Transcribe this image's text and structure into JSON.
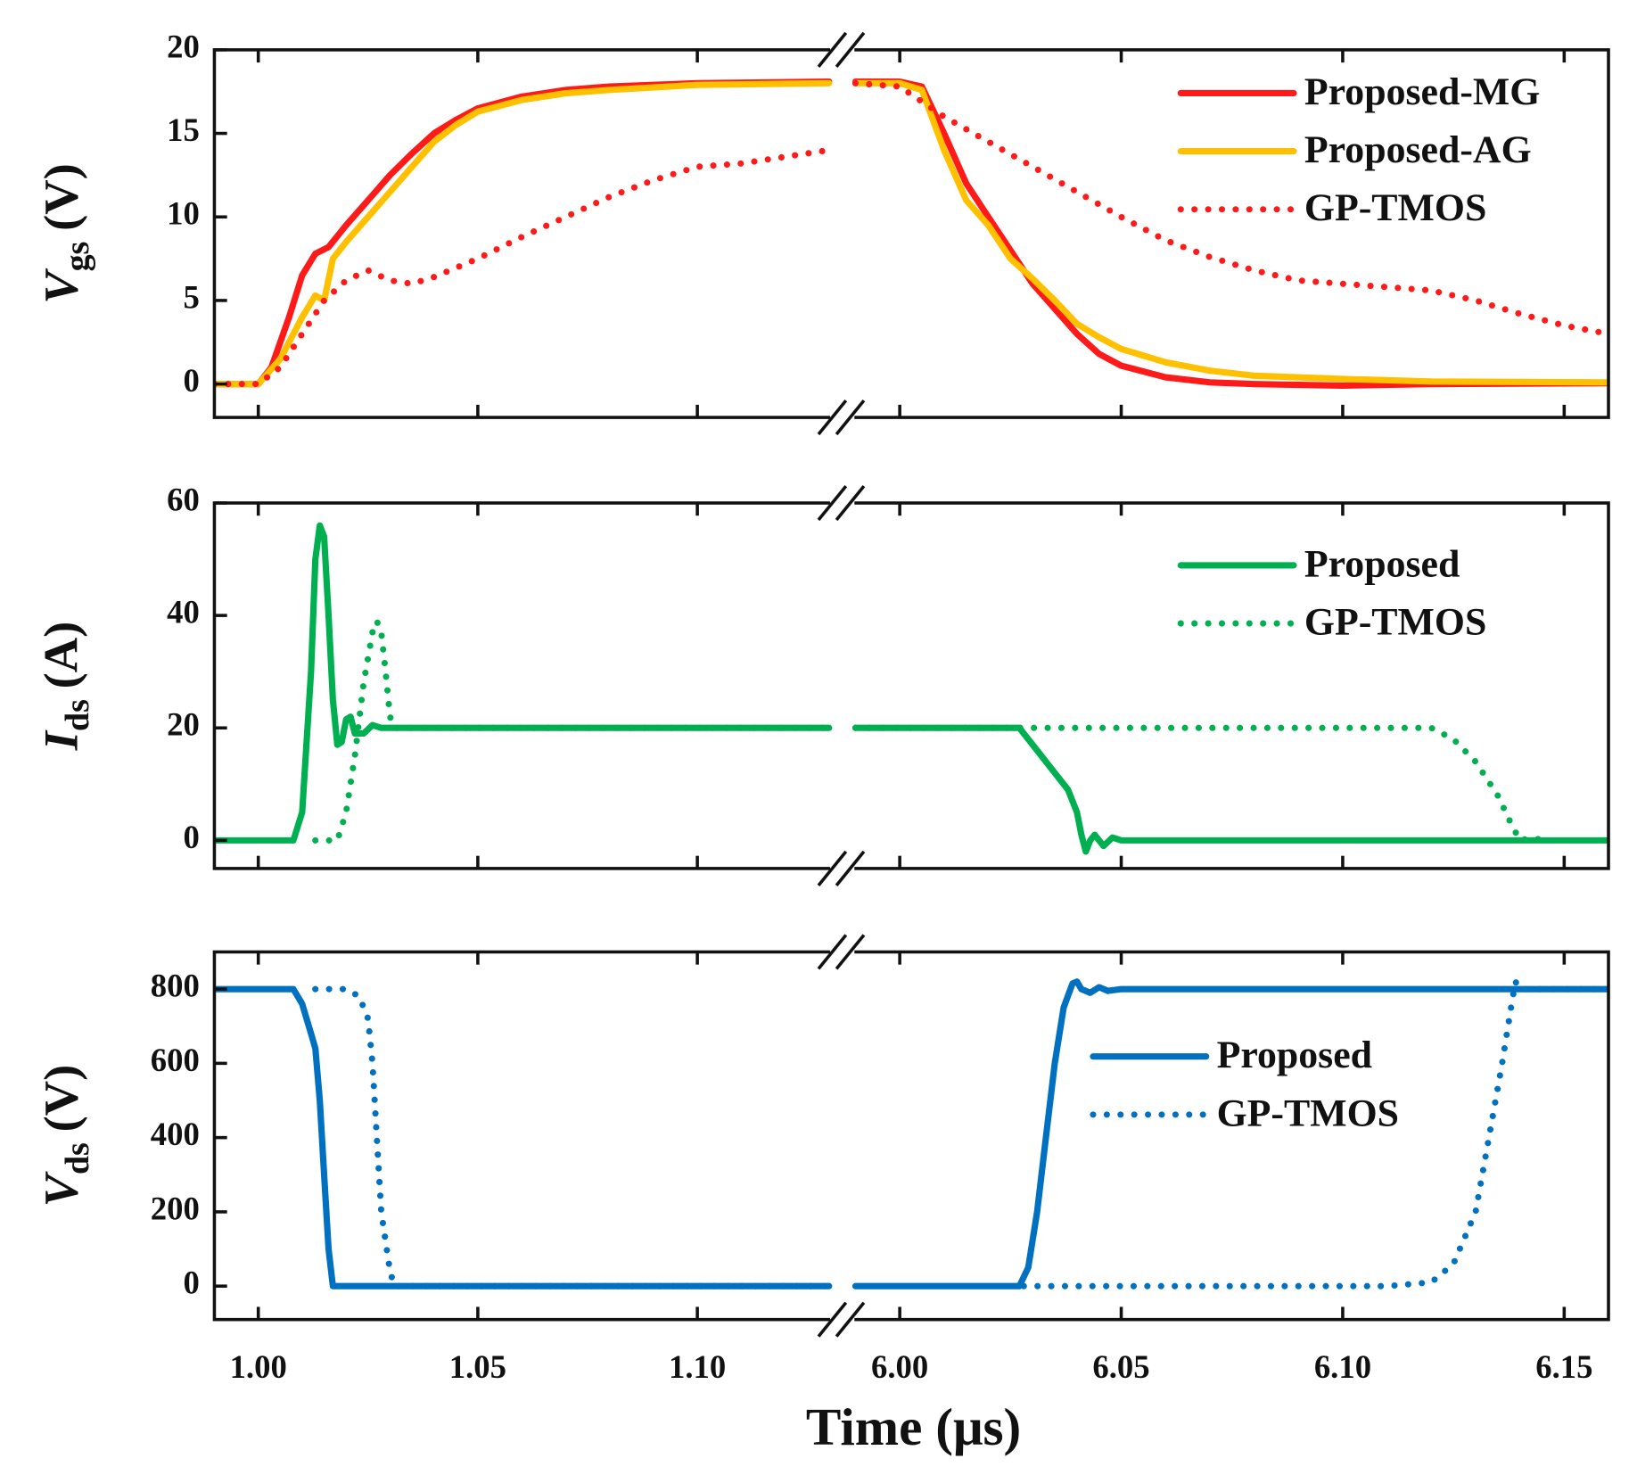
{
  "chart_data": {
    "type": "line",
    "xlabel": "Time (μs)",
    "x_segments": [
      {
        "xlim": [
          0.99,
          1.13
        ],
        "xticks": [
          {
            "value": 1,
            "label": "1.00"
          },
          {
            "value": 1.05,
            "label": "1.05"
          },
          {
            "value": 1.1,
            "label": "1.10"
          }
        ]
      },
      {
        "xlim": [
          5.99,
          6.16
        ],
        "xticks": [
          {
            "value": 6,
            "label": "6.00"
          },
          {
            "value": 6.05,
            "label": "6.05"
          },
          {
            "value": 6.1,
            "label": "6.10"
          },
          {
            "value": 6.15,
            "label": "6.15"
          }
        ]
      }
    ],
    "panels": [
      {
        "ylabel": {
          "symbol": "V",
          "subscript": "gs",
          "unit": "(V)"
        },
        "ylim": [
          -2,
          20
        ],
        "yticks": [
          0,
          5,
          10,
          15,
          20
        ],
        "legend": "upper right",
        "series": [
          {
            "name": "Proposed-MG",
            "color": "#ff1a1a",
            "style": "solid",
            "x": [
              0.99,
              1.0,
              1.003,
              1.007,
              1.01,
              1.013,
              1.016,
              1.02,
              1.025,
              1.03,
              1.035,
              1.04,
              1.045,
              1.05,
              1.06,
              1.07,
              1.08,
              1.1,
              1.13,
              null,
              5.99,
              6.0,
              6.005,
              6.01,
              6.015,
              6.02,
              6.025,
              6.03,
              6.035,
              6.04,
              6.045,
              6.05,
              6.06,
              6.07,
              6.08,
              6.1,
              6.12,
              6.16
            ],
            "values": [
              0,
              0,
              1,
              4,
              6.5,
              7.8,
              8.2,
              9.5,
              11,
              12.5,
              13.8,
              15,
              15.8,
              16.5,
              17.2,
              17.6,
              17.8,
              18,
              18.1,
              null,
              18.1,
              18.1,
              17.8,
              15,
              12,
              10,
              8,
              6,
              4.5,
              3,
              1.8,
              1.1,
              0.4,
              0.1,
              0,
              -0.1,
              0,
              0.05
            ]
          },
          {
            "name": "Proposed-AG",
            "color": "#ffc000",
            "style": "solid",
            "x": [
              0.99,
              1.0,
              1.005,
              1.01,
              1.013,
              1.015,
              1.017,
              1.02,
              1.025,
              1.03,
              1.035,
              1.04,
              1.045,
              1.05,
              1.06,
              1.07,
              1.08,
              1.1,
              1.13,
              null,
              5.99,
              6.0,
              6.005,
              6.01,
              6.015,
              6.02,
              6.025,
              6.03,
              6.035,
              6.04,
              6.045,
              6.05,
              6.06,
              6.07,
              6.08,
              6.1,
              6.12,
              6.16
            ],
            "values": [
              0,
              0,
              1.5,
              4,
              5.3,
              5,
              7.5,
              8.5,
              10,
              11.5,
              13,
              14.5,
              15.5,
              16.3,
              17,
              17.4,
              17.6,
              17.9,
              18,
              null,
              18,
              18,
              17.6,
              14,
              11,
              9.5,
              7.5,
              6.3,
              5,
              3.6,
              2.8,
              2.1,
              1.3,
              0.8,
              0.5,
              0.3,
              0.15,
              0.1
            ]
          },
          {
            "name": "GP-TMOS",
            "color": "#ff1a1a",
            "style": "dotted",
            "x": [
              0.99,
              1.0,
              1.005,
              1.01,
              1.015,
              1.02,
              1.025,
              1.03,
              1.035,
              1.04,
              1.05,
              1.06,
              1.07,
              1.08,
              1.09,
              1.1,
              1.11,
              1.13,
              null,
              5.99,
              6.0,
              6.01,
              6.02,
              6.03,
              6.04,
              6.05,
              6.06,
              6.07,
              6.08,
              6.09,
              6.1,
              6.11,
              6.12,
              6.13,
              6.14,
              6.15,
              6.16
            ],
            "values": [
              0,
              0,
              1,
              3,
              5,
              6.2,
              6.8,
              6.2,
              6,
              6.4,
              7.5,
              8.8,
              10,
              11.2,
              12.2,
              13,
              13.2,
              14,
              null,
              18,
              17.8,
              16,
              14.5,
              13,
              11.5,
              10,
              8.6,
              7.6,
              6.8,
              6.2,
              6,
              5.8,
              5.6,
              5,
              4.2,
              3.5,
              3
            ]
          }
        ]
      },
      {
        "ylabel": {
          "symbol": "I",
          "subscript": "ds",
          "unit": "(A)"
        },
        "ylim": [
          -5,
          60
        ],
        "yticks": [
          0,
          20,
          40,
          60
        ],
        "legend": "upper right",
        "series": [
          {
            "name": "Proposed",
            "color": "#00b050",
            "style": "solid",
            "x": [
              0.99,
              1.008,
              1.01,
              1.012,
              1.013,
              1.014,
              1.015,
              1.016,
              1.017,
              1.018,
              1.019,
              1.02,
              1.021,
              1.022,
              1.024,
              1.026,
              1.028,
              1.03,
              1.13,
              null,
              5.99,
              6.027,
              6.03,
              6.035,
              6.038,
              6.04,
              6.041,
              6.042,
              6.043,
              6.044,
              6.046,
              6.048,
              6.05,
              6.16
            ],
            "values": [
              0,
              0,
              5,
              30,
              50,
              56,
              54,
              40,
              25,
              17,
              17.5,
              21.5,
              22,
              19,
              19,
              20.5,
              20,
              20,
              20,
              null,
              20,
              20,
              17,
              12,
              9,
              5,
              1,
              -2,
              0,
              1,
              -1,
              0.5,
              0,
              0
            ]
          },
          {
            "name": "GP-TMOS",
            "color": "#00b050",
            "style": "dotted",
            "x": [
              1.013,
              1.018,
              1.02,
              1.022,
              1.024,
              1.026,
              1.027,
              1.028,
              1.029,
              1.03,
              1.031,
              1.033,
              1.13,
              null,
              5.99,
              6.12,
              6.125,
              6.13,
              6.135,
              6.138,
              6.14,
              6.143,
              6.145
            ],
            "values": [
              0,
              0,
              5,
              15,
              28,
              37,
              39,
              37,
              30,
              22,
              20,
              20,
              20,
              null,
              20,
              20,
              18,
              14,
              8,
              3,
              0,
              0.5,
              0
            ]
          }
        ]
      },
      {
        "ylabel": {
          "symbol": "V",
          "subscript": "ds",
          "unit": "(V)"
        },
        "ylim": [
          -90,
          900
        ],
        "yticks": [
          0,
          200,
          400,
          600,
          800
        ],
        "legend": "center right",
        "series": [
          {
            "name": "Proposed",
            "color": "#0070c0",
            "style": "solid",
            "x": [
              0.99,
              1.008,
              1.01,
              1.012,
              1.013,
              1.014,
              1.015,
              1.016,
              1.017,
              1.13,
              null,
              5.99,
              6.027,
              6.029,
              6.031,
              6.033,
              6.035,
              6.037,
              6.039,
              6.04,
              6.041,
              6.043,
              6.045,
              6.047,
              6.05,
              6.16
            ],
            "values": [
              800,
              800,
              760,
              680,
              640,
              500,
              300,
              100,
              0,
              0,
              null,
              0,
              0,
              50,
              200,
              400,
              600,
              750,
              815,
              820,
              800,
              790,
              805,
              795,
              800,
              800
            ]
          },
          {
            "name": "GP-TMOS",
            "color": "#0070c0",
            "style": "dotted",
            "x": [
              1.013,
              1.02,
              1.023,
              1.025,
              1.026,
              1.027,
              1.028,
              1.03,
              1.031,
              1.13,
              null,
              6.028,
              6.11,
              6.12,
              6.125,
              6.13,
              6.133,
              6.136,
              6.138,
              6.139,
              6.14,
              6.16
            ],
            "values": [
              800,
              800,
              780,
              720,
              600,
              400,
              200,
              40,
              0,
              0,
              null,
              0,
              0,
              10,
              60,
              200,
              400,
              600,
              750,
              820,
              800,
              800
            ]
          }
        ]
      }
    ]
  }
}
